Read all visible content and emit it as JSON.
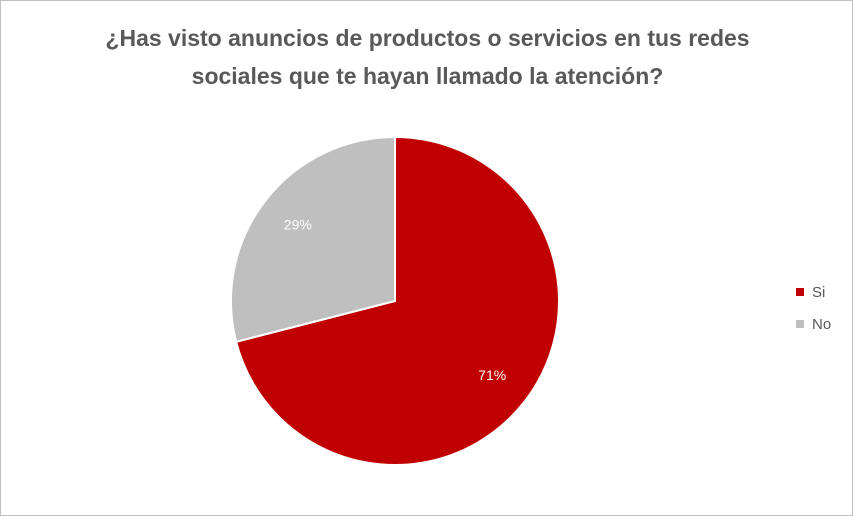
{
  "chart_data": {
    "type": "pie",
    "title": "¿Has visto anuncios de productos o servicios en tus redes sociales que te hayan llamado la atención?",
    "categories": [
      "Si",
      "No"
    ],
    "values": [
      71,
      29
    ],
    "data_labels": [
      "71%",
      "29%"
    ],
    "colors": [
      "#C00000",
      "#BFBFBF"
    ],
    "label_color": "#FFFFFF",
    "legend_position": "right"
  }
}
